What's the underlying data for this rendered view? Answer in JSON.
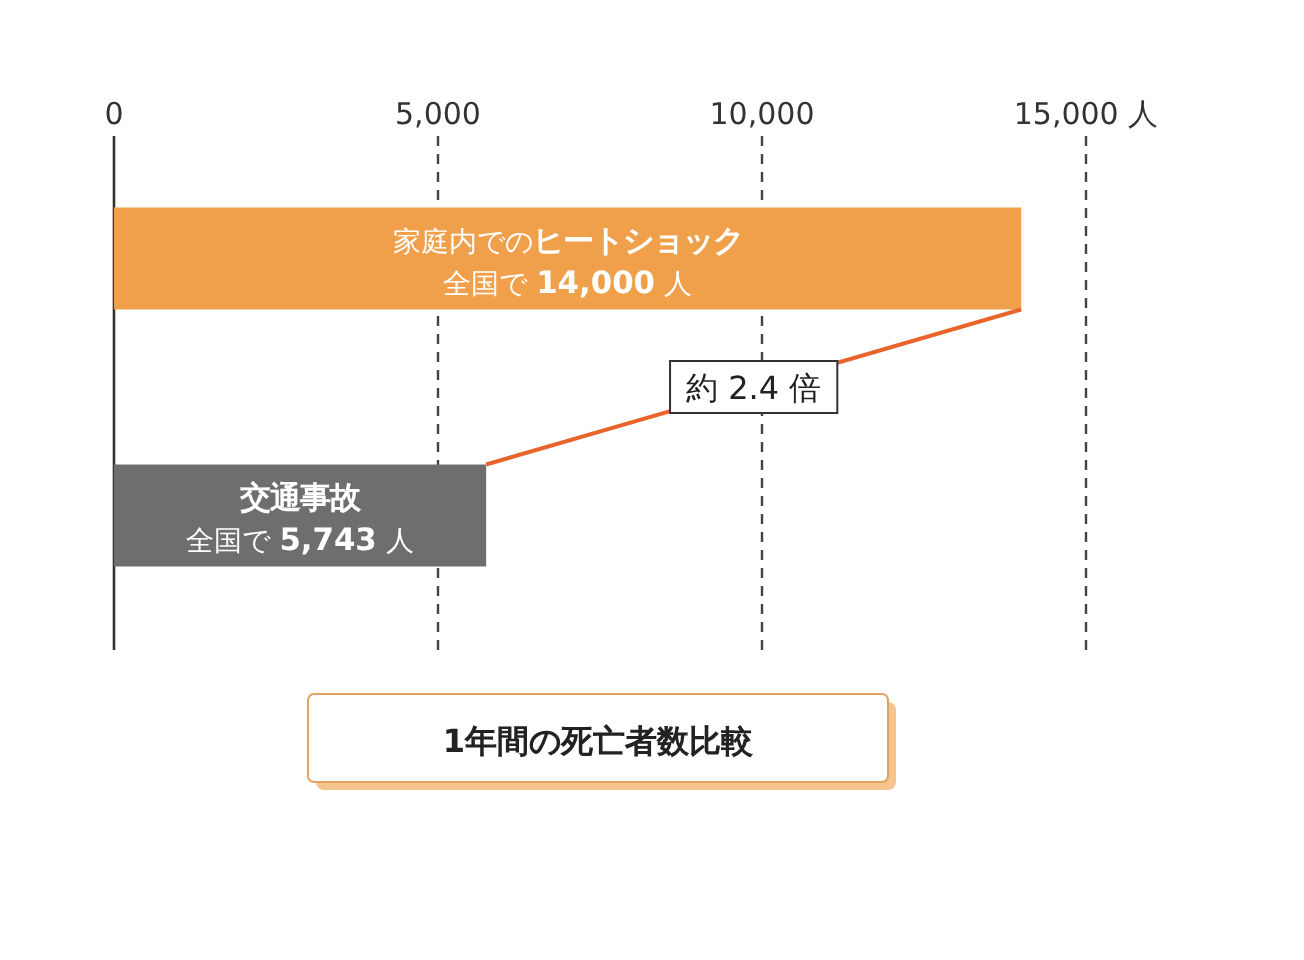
{
  "chart_data": {
    "type": "bar",
    "orientation": "horizontal",
    "title": "1年間の死亡者数比較",
    "categories": [
      "家庭内での**ヒートショック**",
      "交通事故"
    ],
    "values": [
      14000,
      5743
    ],
    "colors": [
      "#f0a04b",
      "#6e6e6e"
    ],
    "value_labels": [
      "全国で **14,000** 人",
      "全国で **5,743** 人"
    ],
    "xlim": [
      0,
      15000
    ],
    "xticks": [
      0,
      {
        "value": 5000,
        "label": "5,000"
      },
      {
        "value": 10000,
        "label": "10,000"
      },
      {
        "value": 15000,
        "label": "15,000 人"
      }
    ],
    "tick_labels": "x",
    "grid": "x",
    "annotations": [
      "約 2.4 倍"
    ]
  }
}
